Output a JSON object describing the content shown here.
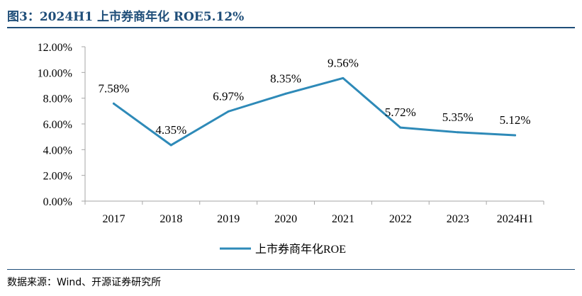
{
  "title": "图3：2024H1 上市券商年化 ROE5.12%",
  "source": "数据来源：Wind、开源证券研究所",
  "colors": {
    "series": "#2e8ab8",
    "title": "#1f4e79",
    "axis": "#a6a6a6"
  },
  "chart_data": {
    "type": "line",
    "categories": [
      "2017",
      "2018",
      "2019",
      "2020",
      "2021",
      "2022",
      "2023",
      "2024H1"
    ],
    "series": [
      {
        "name": "上市券商年化ROE",
        "values": [
          7.58,
          4.35,
          6.97,
          8.35,
          9.56,
          5.72,
          5.35,
          5.12
        ],
        "labels": [
          "7.58%",
          "4.35%",
          "6.97%",
          "8.35%",
          "9.56%",
          "5.72%",
          "5.35%",
          "5.12%"
        ]
      }
    ],
    "y_ticks": [
      "0.00%",
      "2.00%",
      "4.00%",
      "6.00%",
      "8.00%",
      "10.00%",
      "12.00%"
    ],
    "ylim": [
      0,
      12
    ],
    "legend_position": "bottom-center",
    "grid": false
  }
}
